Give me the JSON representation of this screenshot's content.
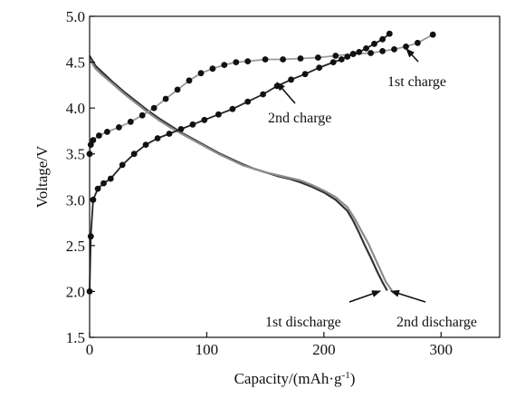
{
  "chart_data": {
    "type": "line",
    "xlabel": "Capacity/(mAh·g-1)",
    "xlabel_parts": {
      "main": "Capacity/(mAh·g",
      "sup": "-1",
      "close": ")"
    },
    "ylabel": "Voltage/V",
    "xlim": [
      0,
      350
    ],
    "ylim": [
      1.5,
      5.0
    ],
    "xticks": [
      0,
      100,
      200,
      300
    ],
    "xtick_labels": [
      "0",
      "100",
      "200",
      "300"
    ],
    "yticks": [
      1.5,
      2.0,
      2.5,
      3.0,
      3.5,
      4.0,
      4.5,
      5.0
    ],
    "ytick_labels": [
      "1.5",
      "2.0",
      "2.5",
      "3.0",
      "3.5",
      "4.0",
      "4.5",
      "5.0"
    ],
    "grid": false,
    "series": [
      {
        "name": "1st charge",
        "color": "#9a9a9a",
        "markers": true,
        "x": [
          0,
          1,
          3,
          8,
          15,
          25,
          35,
          45,
          55,
          65,
          75,
          85,
          95,
          105,
          115,
          125,
          135,
          150,
          165,
          180,
          195,
          210,
          225,
          240,
          250,
          260,
          270,
          280,
          293
        ],
        "y": [
          3.5,
          3.6,
          3.65,
          3.7,
          3.74,
          3.79,
          3.85,
          3.92,
          4.0,
          4.1,
          4.2,
          4.3,
          4.38,
          4.43,
          4.47,
          4.5,
          4.51,
          4.53,
          4.53,
          4.54,
          4.55,
          4.57,
          4.59,
          4.6,
          4.62,
          4.64,
          4.67,
          4.71,
          4.8
        ]
      },
      {
        "name": "2nd charge",
        "color": "#222222",
        "markers": true,
        "x": [
          0,
          1,
          3,
          7,
          12,
          18,
          28,
          38,
          48,
          58,
          68,
          78,
          88,
          98,
          110,
          122,
          135,
          148,
          160,
          172,
          184,
          196,
          208,
          215,
          220,
          225,
          230,
          236,
          243,
          250,
          256
        ],
        "y": [
          2.0,
          2.6,
          3.0,
          3.12,
          3.18,
          3.23,
          3.38,
          3.5,
          3.6,
          3.67,
          3.72,
          3.77,
          3.82,
          3.87,
          3.93,
          3.99,
          4.07,
          4.15,
          4.24,
          4.31,
          4.37,
          4.44,
          4.5,
          4.53,
          4.56,
          4.59,
          4.61,
          4.65,
          4.7,
          4.75,
          4.81
        ]
      },
      {
        "name": "1st discharge",
        "color": "#333333",
        "markers": false,
        "x": [
          0,
          5,
          10,
          20,
          30,
          40,
          50,
          60,
          70,
          80,
          90,
          100,
          110,
          120,
          130,
          140,
          150,
          160,
          170,
          180,
          190,
          200,
          210,
          220,
          225,
          230,
          235,
          240,
          245,
          250,
          254
        ],
        "y": [
          4.57,
          4.46,
          4.4,
          4.28,
          4.17,
          4.07,
          3.97,
          3.88,
          3.8,
          3.72,
          3.65,
          3.58,
          3.51,
          3.45,
          3.39,
          3.34,
          3.3,
          3.26,
          3.23,
          3.19,
          3.14,
          3.08,
          3.0,
          2.88,
          2.77,
          2.64,
          2.5,
          2.37,
          2.23,
          2.1,
          2.01
        ]
      },
      {
        "name": "2nd discharge",
        "color": "#8c8c8c",
        "markers": false,
        "x": [
          0,
          5,
          10,
          20,
          30,
          40,
          50,
          60,
          70,
          80,
          90,
          100,
          110,
          120,
          130,
          140,
          150,
          160,
          170,
          180,
          190,
          200,
          210,
          220,
          226,
          232,
          238,
          243,
          248,
          253,
          258
        ],
        "y": [
          4.53,
          4.43,
          4.37,
          4.26,
          4.15,
          4.05,
          3.95,
          3.86,
          3.78,
          3.71,
          3.64,
          3.57,
          3.5,
          3.44,
          3.38,
          3.34,
          3.3,
          3.27,
          3.24,
          3.21,
          3.16,
          3.1,
          3.03,
          2.92,
          2.8,
          2.66,
          2.52,
          2.38,
          2.24,
          2.1,
          2.01
        ]
      }
    ],
    "annotations": [
      {
        "label": "1st charge",
        "series": "1st charge"
      },
      {
        "label": "2nd charge",
        "series": "2nd charge"
      },
      {
        "label": "1st discharge",
        "series": "1st discharge"
      },
      {
        "label": "2nd discharge",
        "series": "2nd discharge"
      }
    ]
  }
}
